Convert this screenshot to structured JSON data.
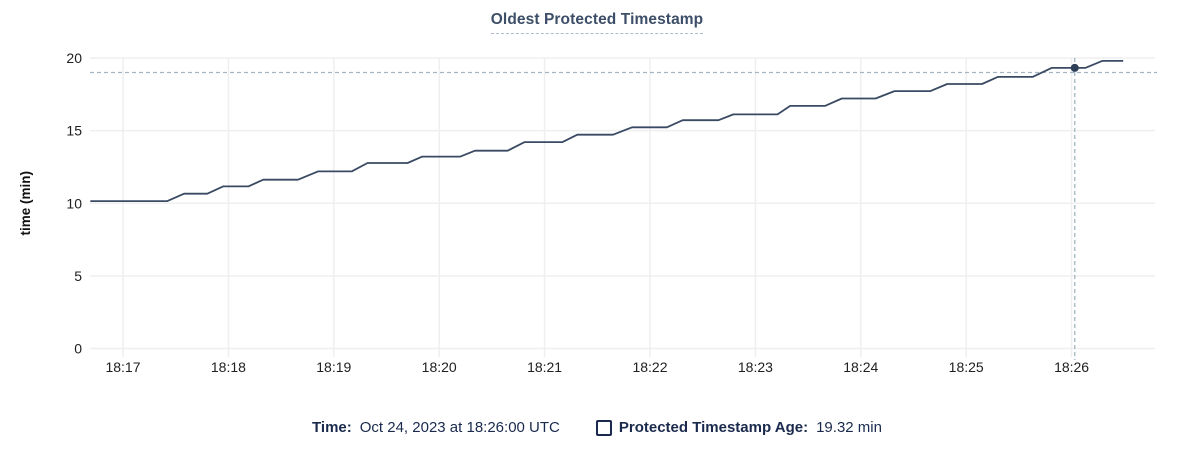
{
  "title": "Oldest Protected Timestamp",
  "legend": {
    "time_label": "Time:",
    "time_value": "Oct 24, 2023 at 18:26:00 UTC",
    "series_label": "Protected Timestamp Age:",
    "series_value": "19.32 min"
  },
  "colors": {
    "navy": "#1a2a4d",
    "title": "#3d4e68",
    "line": "#3a4a63",
    "dot": "#2d3e57",
    "grid": "#efefef",
    "crosshair": "#a3b5c2",
    "tick_text": "#202020"
  },
  "chart_data": {
    "type": "line",
    "title": "Oldest Protected Timestamp",
    "xlabel": "",
    "ylabel": "time (min)",
    "ylim": [
      0,
      20
    ],
    "yticks": [
      0,
      5,
      10,
      15,
      20
    ],
    "xticks": [
      "18:17",
      "18:18",
      "18:19",
      "18:20",
      "18:21",
      "18:22",
      "18:23",
      "18:24",
      "18:25",
      "18:26"
    ],
    "x_unit": "minutes since 18:17",
    "grid": true,
    "legend_position": "bottom",
    "series": [
      {
        "name": "Protected Timestamp Age",
        "points": [
          [
            -0.31,
            10.15
          ],
          [
            0.42,
            10.15
          ],
          [
            0.58,
            10.66
          ],
          [
            0.8,
            10.66
          ],
          [
            0.95,
            11.16
          ],
          [
            1.19,
            11.16
          ],
          [
            1.33,
            11.62
          ],
          [
            1.66,
            11.62
          ],
          [
            1.85,
            12.19
          ],
          [
            2.17,
            12.19
          ],
          [
            2.32,
            12.77
          ],
          [
            2.7,
            12.77
          ],
          [
            2.84,
            13.21
          ],
          [
            3.2,
            13.21
          ],
          [
            3.34,
            13.62
          ],
          [
            3.65,
            13.62
          ],
          [
            3.81,
            14.21
          ],
          [
            4.17,
            14.21
          ],
          [
            4.31,
            14.72
          ],
          [
            4.65,
            14.72
          ],
          [
            4.83,
            15.23
          ],
          [
            5.16,
            15.23
          ],
          [
            5.31,
            15.72
          ],
          [
            5.65,
            15.72
          ],
          [
            5.79,
            16.12
          ],
          [
            6.21,
            16.12
          ],
          [
            6.33,
            16.7
          ],
          [
            6.66,
            16.7
          ],
          [
            6.82,
            17.21
          ],
          [
            7.14,
            17.21
          ],
          [
            7.32,
            17.72
          ],
          [
            7.66,
            17.72
          ],
          [
            7.82,
            18.21
          ],
          [
            8.15,
            18.21
          ],
          [
            8.3,
            18.7
          ],
          [
            8.63,
            18.7
          ],
          [
            8.81,
            19.32
          ],
          [
            9.13,
            19.32
          ],
          [
            9.29,
            19.8
          ],
          [
            9.49,
            19.8
          ]
        ]
      }
    ],
    "hover": {
      "time": "18:26",
      "time_full": "Oct 24, 2023 at 18:26:00 UTC",
      "value": 19.32,
      "value_label": "19.32 min",
      "x": 9.03,
      "crosshair_y": 19.0
    }
  }
}
